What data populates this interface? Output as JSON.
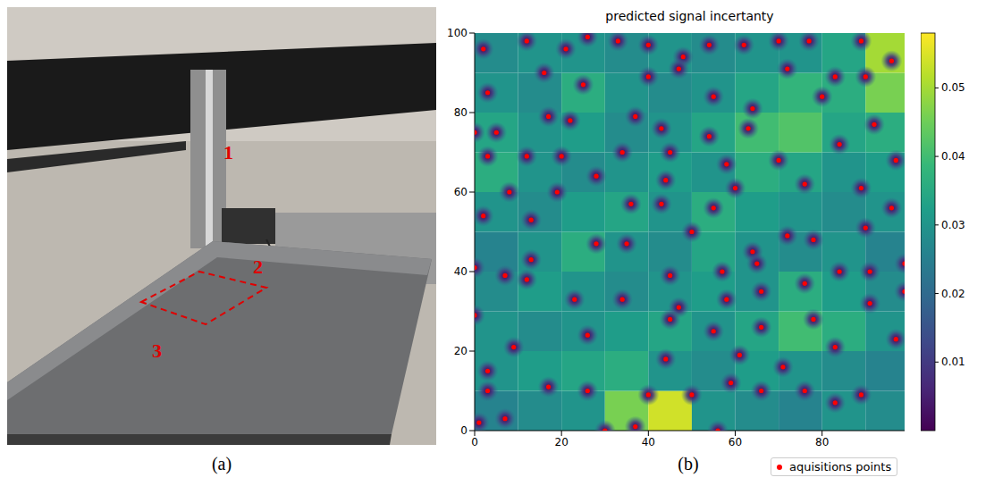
{
  "panel_labels": [
    "(a)",
    "(b)"
  ],
  "panel_a": {
    "markers": [
      "1",
      "2",
      "3"
    ]
  },
  "chart_data": {
    "type": "scatter",
    "title": "predicted signal incertanty",
    "xlim": [
      0,
      99
    ],
    "ylim": [
      0,
      100
    ],
    "xticks": [
      0,
      20,
      40,
      60,
      80
    ],
    "yticks": [
      0,
      20,
      40,
      60,
      80,
      100
    ],
    "legend": "bottom",
    "series": [
      {
        "name": "aquisitions points",
        "color": "#ff0000",
        "marker": "circle",
        "x": [
          2,
          12,
          21,
          26,
          33,
          40,
          48,
          54,
          62,
          70,
          77,
          89,
          96,
          16,
          25,
          40,
          47,
          72,
          83,
          90,
          3,
          55,
          64,
          80,
          5,
          17,
          22,
          37,
          43,
          54,
          63,
          92,
          0,
          3,
          12,
          20,
          34,
          45,
          58,
          70,
          84,
          97,
          8,
          19,
          28,
          36,
          44,
          60,
          76,
          89,
          2,
          13,
          43,
          55,
          96,
          28,
          35,
          50,
          64,
          72,
          78,
          90,
          0,
          7,
          12,
          13,
          45,
          57,
          65,
          76,
          84,
          91,
          99,
          23,
          34,
          47,
          58,
          66,
          91,
          99,
          0,
          26,
          45,
          55,
          66,
          78,
          97,
          3,
          9,
          44,
          61,
          71,
          83,
          3,
          17,
          26,
          40,
          50,
          59,
          66,
          76,
          83,
          89,
          1,
          7,
          30,
          37,
          56
        ],
        "y": [
          96,
          98,
          96,
          99,
          98,
          97,
          94,
          97,
          97,
          98,
          98,
          98,
          93,
          90,
          87,
          89,
          91,
          91,
          89,
          89,
          85,
          84,
          81,
          84,
          75,
          79,
          78,
          79,
          76,
          74,
          76,
          77,
          75,
          69,
          69,
          69,
          70,
          70,
          67,
          68,
          72,
          68,
          60,
          60,
          64,
          57,
          63,
          61,
          62,
          61,
          54,
          53,
          57,
          56,
          56,
          47,
          47,
          50,
          45,
          49,
          48,
          51,
          41,
          39,
          38,
          43,
          39,
          40,
          42,
          37,
          40,
          40,
          42,
          33,
          33,
          31,
          33,
          35,
          32,
          35,
          29,
          24,
          28,
          25,
          26,
          28,
          23,
          15,
          21,
          18,
          19,
          16,
          21,
          10,
          11,
          10,
          9,
          9,
          12,
          10,
          10,
          7,
          9,
          2,
          3,
          0,
          1,
          0
        ]
      }
    ],
    "heatmap": {
      "x_edges": [
        0,
        10,
        20,
        30,
        40,
        50,
        60,
        70,
        80,
        90,
        100
      ],
      "y_edges": [
        0,
        10,
        20,
        30,
        40,
        50,
        60,
        70,
        80,
        90,
        100
      ],
      "cells": [
        [
          0.026,
          0.028,
          0.03,
          0.046,
          0.054,
          0.03,
          0.028,
          0.026,
          0.03,
          0.028
        ],
        [
          0.03,
          0.032,
          0.034,
          0.036,
          0.03,
          0.028,
          0.032,
          0.03,
          0.028,
          0.026
        ],
        [
          0.03,
          0.028,
          0.03,
          0.032,
          0.034,
          0.03,
          0.034,
          0.04,
          0.036,
          0.03
        ],
        [
          0.028,
          0.032,
          0.03,
          0.028,
          0.03,
          0.032,
          0.03,
          0.036,
          0.032,
          0.028
        ],
        [
          0.026,
          0.03,
          0.036,
          0.03,
          0.028,
          0.034,
          0.03,
          0.028,
          0.03,
          0.026
        ],
        [
          0.03,
          0.028,
          0.032,
          0.034,
          0.03,
          0.036,
          0.032,
          0.03,
          0.028,
          0.03
        ],
        [
          0.036,
          0.03,
          0.028,
          0.03,
          0.032,
          0.03,
          0.036,
          0.034,
          0.03,
          0.032
        ],
        [
          0.034,
          0.03,
          0.032,
          0.028,
          0.03,
          0.034,
          0.04,
          0.042,
          0.034,
          0.036
        ],
        [
          0.03,
          0.028,
          0.036,
          0.03,
          0.028,
          0.03,
          0.034,
          0.038,
          0.036,
          0.046
        ],
        [
          0.028,
          0.03,
          0.03,
          0.028,
          0.03,
          0.028,
          0.03,
          0.03,
          0.034,
          0.05
        ]
      ]
    },
    "colorbar": {
      "range": [
        0,
        0.058
      ],
      "ticks": [
        0.01,
        0.02,
        0.03,
        0.04,
        0.05
      ]
    }
  }
}
